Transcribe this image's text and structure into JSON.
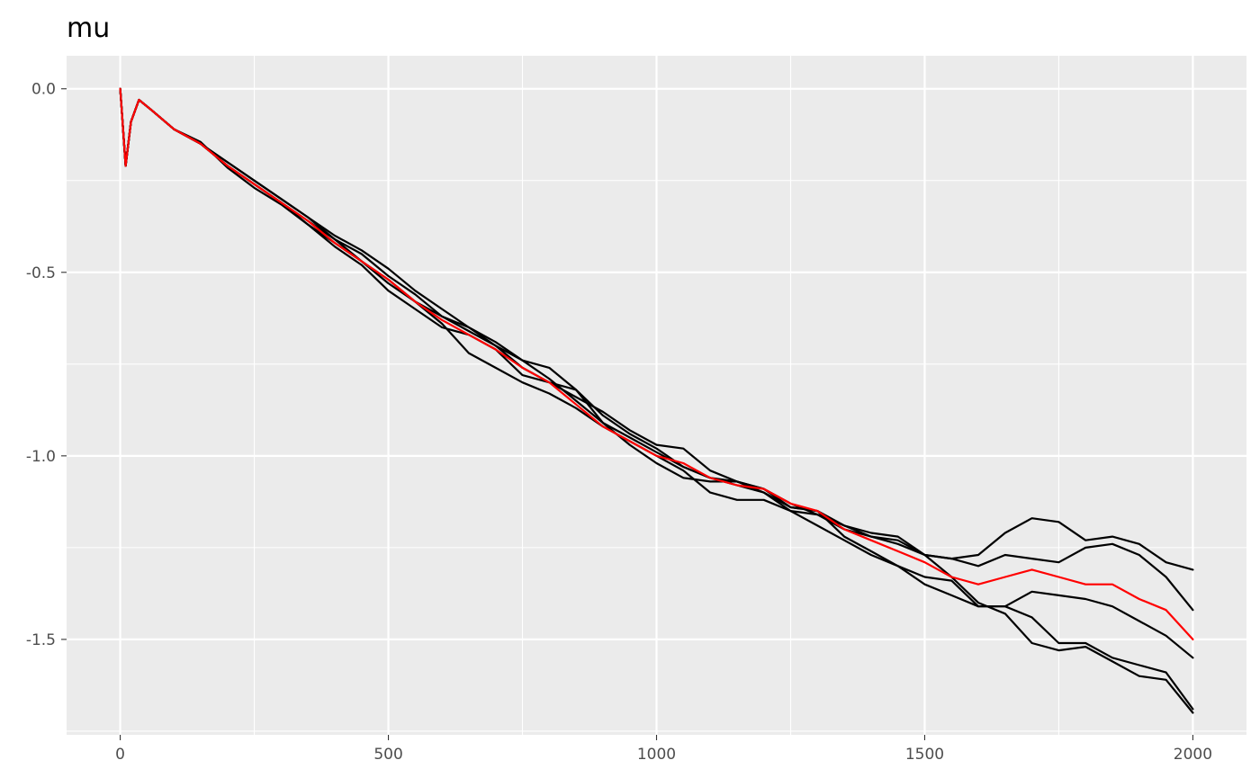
{
  "chart_data": {
    "type": "line",
    "title": "mu",
    "xlabel": "",
    "ylabel": "",
    "xlim": [
      -100,
      2100
    ],
    "ylim": [
      -1.76,
      0.09
    ],
    "x_ticks": [
      0,
      500,
      1000,
      1500,
      2000
    ],
    "x_tick_labels": [
      "0",
      "500",
      "1000",
      "1500",
      "2000"
    ],
    "y_ticks": [
      0.0,
      -0.5,
      -1.0,
      -1.5
    ],
    "y_tick_labels": [
      "0.0",
      "-0.5",
      "-1.0",
      "-1.5"
    ],
    "grid": true,
    "legend": "none",
    "colors": {
      "panel": "#EBEBEB",
      "grid": "#FFFFFF",
      "series_default": "#000000",
      "series_mean": "#FF0000"
    },
    "series": [
      {
        "color": "#000000",
        "points": [
          [
            0,
            0
          ],
          [
            10,
            -0.21
          ],
          [
            20,
            -0.09
          ],
          [
            35,
            -0.03
          ],
          [
            60,
            -0.06
          ],
          [
            100,
            -0.11
          ],
          [
            150,
            -0.145
          ],
          [
            200,
            -0.215
          ],
          [
            250,
            -0.27
          ],
          [
            300,
            -0.315
          ],
          [
            350,
            -0.37
          ],
          [
            400,
            -0.42
          ],
          [
            450,
            -0.47
          ],
          [
            500,
            -0.53
          ],
          [
            550,
            -0.58
          ],
          [
            600,
            -0.64
          ],
          [
            650,
            -0.72
          ],
          [
            700,
            -0.76
          ],
          [
            750,
            -0.8
          ],
          [
            800,
            -0.83
          ],
          [
            850,
            -0.87
          ],
          [
            900,
            -0.92
          ],
          [
            950,
            -0.96
          ],
          [
            1000,
            -1.0
          ],
          [
            1050,
            -1.04
          ],
          [
            1100,
            -1.1
          ],
          [
            1150,
            -1.12
          ],
          [
            1200,
            -1.12
          ],
          [
            1250,
            -1.15
          ],
          [
            1300,
            -1.16
          ],
          [
            1350,
            -1.19
          ],
          [
            1400,
            -1.22
          ],
          [
            1450,
            -1.24
          ],
          [
            1500,
            -1.27
          ],
          [
            1550,
            -1.33
          ],
          [
            1600,
            -1.4
          ],
          [
            1650,
            -1.43
          ],
          [
            1700,
            -1.51
          ],
          [
            1750,
            -1.53
          ],
          [
            1800,
            -1.52
          ],
          [
            1850,
            -1.56
          ],
          [
            1900,
            -1.6
          ],
          [
            1950,
            -1.61
          ],
          [
            2000,
            -1.7
          ]
        ]
      },
      {
        "color": "#000000",
        "points": [
          [
            0,
            0
          ],
          [
            10,
            -0.21
          ],
          [
            20,
            -0.09
          ],
          [
            35,
            -0.03
          ],
          [
            60,
            -0.06
          ],
          [
            100,
            -0.11
          ],
          [
            150,
            -0.15
          ],
          [
            200,
            -0.2
          ],
          [
            250,
            -0.25
          ],
          [
            300,
            -0.3
          ],
          [
            350,
            -0.35
          ],
          [
            400,
            -0.41
          ],
          [
            450,
            -0.45
          ],
          [
            500,
            -0.51
          ],
          [
            550,
            -0.56
          ],
          [
            600,
            -0.62
          ],
          [
            650,
            -0.65
          ],
          [
            700,
            -0.69
          ],
          [
            750,
            -0.74
          ],
          [
            800,
            -0.76
          ],
          [
            850,
            -0.82
          ],
          [
            900,
            -0.91
          ],
          [
            950,
            -0.95
          ],
          [
            1000,
            -0.99
          ],
          [
            1050,
            -1.03
          ],
          [
            1100,
            -1.06
          ],
          [
            1150,
            -1.07
          ],
          [
            1200,
            -1.09
          ],
          [
            1250,
            -1.13
          ],
          [
            1300,
            -1.16
          ],
          [
            1350,
            -1.2
          ],
          [
            1400,
            -1.22
          ],
          [
            1450,
            -1.23
          ],
          [
            1500,
            -1.27
          ],
          [
            1550,
            -1.28
          ],
          [
            1600,
            -1.27
          ],
          [
            1650,
            -1.21
          ],
          [
            1700,
            -1.17
          ],
          [
            1750,
            -1.18
          ],
          [
            1800,
            -1.23
          ],
          [
            1850,
            -1.22
          ],
          [
            1900,
            -1.24
          ],
          [
            1950,
            -1.29
          ],
          [
            2000,
            -1.31
          ]
        ]
      },
      {
        "color": "#000000",
        "points": [
          [
            0,
            0
          ],
          [
            10,
            -0.21
          ],
          [
            20,
            -0.09
          ],
          [
            35,
            -0.03
          ],
          [
            60,
            -0.06
          ],
          [
            100,
            -0.11
          ],
          [
            150,
            -0.15
          ],
          [
            200,
            -0.21
          ],
          [
            250,
            -0.26
          ],
          [
            300,
            -0.31
          ],
          [
            350,
            -0.36
          ],
          [
            400,
            -0.41
          ],
          [
            450,
            -0.47
          ],
          [
            500,
            -0.52
          ],
          [
            550,
            -0.58
          ],
          [
            600,
            -0.62
          ],
          [
            650,
            -0.66
          ],
          [
            700,
            -0.7
          ],
          [
            750,
            -0.76
          ],
          [
            800,
            -0.8
          ],
          [
            850,
            -0.84
          ],
          [
            900,
            -0.88
          ],
          [
            950,
            -0.93
          ],
          [
            1000,
            -0.97
          ],
          [
            1050,
            -0.98
          ],
          [
            1100,
            -1.04
          ],
          [
            1150,
            -1.07
          ],
          [
            1200,
            -1.09
          ],
          [
            1250,
            -1.14
          ],
          [
            1300,
            -1.15
          ],
          [
            1350,
            -1.19
          ],
          [
            1400,
            -1.21
          ],
          [
            1450,
            -1.22
          ],
          [
            1500,
            -1.27
          ],
          [
            1550,
            -1.28
          ],
          [
            1600,
            -1.3
          ],
          [
            1650,
            -1.27
          ],
          [
            1700,
            -1.28
          ],
          [
            1750,
            -1.29
          ],
          [
            1800,
            -1.25
          ],
          [
            1850,
            -1.24
          ],
          [
            1900,
            -1.27
          ],
          [
            1950,
            -1.33
          ],
          [
            2000,
            -1.42
          ]
        ]
      },
      {
        "color": "#000000",
        "points": [
          [
            0,
            0
          ],
          [
            10,
            -0.21
          ],
          [
            20,
            -0.09
          ],
          [
            35,
            -0.03
          ],
          [
            60,
            -0.06
          ],
          [
            100,
            -0.11
          ],
          [
            150,
            -0.15
          ],
          [
            200,
            -0.2
          ],
          [
            250,
            -0.25
          ],
          [
            300,
            -0.3
          ],
          [
            350,
            -0.35
          ],
          [
            400,
            -0.4
          ],
          [
            450,
            -0.44
          ],
          [
            500,
            -0.49
          ],
          [
            550,
            -0.55
          ],
          [
            600,
            -0.6
          ],
          [
            650,
            -0.65
          ],
          [
            700,
            -0.7
          ],
          [
            750,
            -0.74
          ],
          [
            800,
            -0.79
          ],
          [
            850,
            -0.85
          ],
          [
            900,
            -0.91
          ],
          [
            950,
            -0.97
          ],
          [
            1000,
            -1.02
          ],
          [
            1050,
            -1.06
          ],
          [
            1100,
            -1.07
          ],
          [
            1150,
            -1.07
          ],
          [
            1200,
            -1.1
          ],
          [
            1250,
            -1.15
          ],
          [
            1300,
            -1.19
          ],
          [
            1350,
            -1.23
          ],
          [
            1400,
            -1.27
          ],
          [
            1450,
            -1.3
          ],
          [
            1500,
            -1.35
          ],
          [
            1550,
            -1.38
          ],
          [
            1600,
            -1.41
          ],
          [
            1650,
            -1.41
          ],
          [
            1700,
            -1.37
          ],
          [
            1750,
            -1.38
          ],
          [
            1800,
            -1.39
          ],
          [
            1850,
            -1.41
          ],
          [
            1900,
            -1.45
          ],
          [
            1950,
            -1.49
          ],
          [
            2000,
            -1.55
          ]
        ]
      },
      {
        "color": "#000000",
        "points": [
          [
            0,
            0
          ],
          [
            10,
            -0.21
          ],
          [
            20,
            -0.09
          ],
          [
            35,
            -0.03
          ],
          [
            60,
            -0.06
          ],
          [
            100,
            -0.11
          ],
          [
            150,
            -0.15
          ],
          [
            200,
            -0.21
          ],
          [
            250,
            -0.26
          ],
          [
            300,
            -0.31
          ],
          [
            350,
            -0.37
          ],
          [
            400,
            -0.43
          ],
          [
            450,
            -0.48
          ],
          [
            500,
            -0.55
          ],
          [
            550,
            -0.6
          ],
          [
            600,
            -0.65
          ],
          [
            650,
            -0.67
          ],
          [
            700,
            -0.71
          ],
          [
            750,
            -0.78
          ],
          [
            800,
            -0.8
          ],
          [
            850,
            -0.82
          ],
          [
            900,
            -0.89
          ],
          [
            950,
            -0.94
          ],
          [
            1000,
            -0.98
          ],
          [
            1050,
            -1.03
          ],
          [
            1100,
            -1.06
          ],
          [
            1150,
            -1.08
          ],
          [
            1200,
            -1.1
          ],
          [
            1250,
            -1.14
          ],
          [
            1300,
            -1.15
          ],
          [
            1350,
            -1.22
          ],
          [
            1400,
            -1.26
          ],
          [
            1450,
            -1.3
          ],
          [
            1500,
            -1.33
          ],
          [
            1550,
            -1.34
          ],
          [
            1600,
            -1.41
          ],
          [
            1650,
            -1.41
          ],
          [
            1700,
            -1.44
          ],
          [
            1750,
            -1.51
          ],
          [
            1800,
            -1.51
          ],
          [
            1850,
            -1.55
          ],
          [
            1900,
            -1.57
          ],
          [
            1950,
            -1.59
          ],
          [
            2000,
            -1.69
          ]
        ]
      },
      {
        "color": "#FF0000",
        "points": [
          [
            0,
            0
          ],
          [
            10,
            -0.21
          ],
          [
            20,
            -0.09
          ],
          [
            35,
            -0.03
          ],
          [
            60,
            -0.06
          ],
          [
            100,
            -0.11
          ],
          [
            150,
            -0.15
          ],
          [
            200,
            -0.21
          ],
          [
            250,
            -0.26
          ],
          [
            300,
            -0.31
          ],
          [
            350,
            -0.36
          ],
          [
            400,
            -0.42
          ],
          [
            450,
            -0.47
          ],
          [
            500,
            -0.52
          ],
          [
            550,
            -0.58
          ],
          [
            600,
            -0.63
          ],
          [
            650,
            -0.67
          ],
          [
            700,
            -0.71
          ],
          [
            750,
            -0.76
          ],
          [
            800,
            -0.8
          ],
          [
            850,
            -0.86
          ],
          [
            900,
            -0.92
          ],
          [
            950,
            -0.96
          ],
          [
            1000,
            -1.0
          ],
          [
            1050,
            -1.02
          ],
          [
            1100,
            -1.06
          ],
          [
            1150,
            -1.08
          ],
          [
            1200,
            -1.09
          ],
          [
            1250,
            -1.13
          ],
          [
            1300,
            -1.15
          ],
          [
            1350,
            -1.2
          ],
          [
            1400,
            -1.23
          ],
          [
            1450,
            -1.26
          ],
          [
            1500,
            -1.29
          ],
          [
            1550,
            -1.33
          ],
          [
            1600,
            -1.35
          ],
          [
            1650,
            -1.33
          ],
          [
            1700,
            -1.31
          ],
          [
            1750,
            -1.33
          ],
          [
            1800,
            -1.35
          ],
          [
            1850,
            -1.35
          ],
          [
            1900,
            -1.39
          ],
          [
            1950,
            -1.42
          ],
          [
            2000,
            -1.5
          ]
        ]
      }
    ]
  }
}
